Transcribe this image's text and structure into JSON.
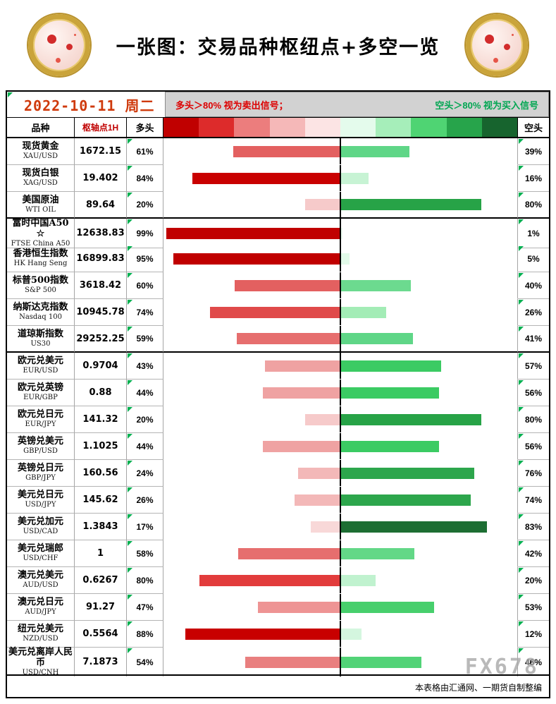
{
  "page": {
    "title": "一张图：交易品种枢纽点+多空一览",
    "date": "2022-10-11 周二",
    "legend": {
      "long_rule": "多头＞80% 视为卖出信号；",
      "short_rule": "空头＞80% 视为买入信号"
    },
    "footer_note": "本表格由汇通网、一期货自制整编",
    "watermark": "FX678"
  },
  "colors": {
    "date_text": "#cf3a0c",
    "legend_long_text": "#dd0000",
    "legend_short_text": "#00a651",
    "pivot_header_text": "#c00000",
    "comment_triangle": "#00b050",
    "legend_background": "#d2d2d2"
  },
  "table": {
    "headers": {
      "instrument": "品种",
      "pivot": "枢轴点1H",
      "long": "多头",
      "short": "空头"
    },
    "color_scale": [
      "#c00000",
      "#dd2b2b",
      "#ec7d7d",
      "#f5b8b8",
      "#fce4e4",
      "#e4fbec",
      "#a6eeba",
      "#4fd473",
      "#27a44b",
      "#17642e"
    ],
    "rows": [
      {
        "name_cn": "现货黄金",
        "ticker": "XAU/USD",
        "pivot": "1672.15",
        "long_pct": 61,
        "short_pct": 39,
        "long_color": "#e36060",
        "short_color": "#5fd687",
        "group": 1
      },
      {
        "name_cn": "现货白银",
        "ticker": "XAG/USD",
        "pivot": "19.402",
        "long_pct": 84,
        "short_pct": 16,
        "long_color": "#c90000",
        "short_color": "#c7f3d4",
        "group": 1
      },
      {
        "name_cn": "美国原油",
        "ticker": "WTI OIL",
        "pivot": "89.64",
        "long_pct": 20,
        "short_pct": 80,
        "long_color": "#f6caca",
        "short_color": "#27a347",
        "group": 1
      },
      {
        "name_cn": "富时中国A50 ☆",
        "ticker": "FTSE China A50",
        "pivot": "12638.83",
        "long_pct": 99,
        "short_pct": 1,
        "long_color": "#c00000",
        "short_color": "#edfcf1",
        "group": 2
      },
      {
        "name_cn": "香港恒生指数",
        "ticker": "HK Hang Seng",
        "pivot": "16899.83",
        "long_pct": 95,
        "short_pct": 5,
        "long_color": "#c00000",
        "short_color": "#e2fae9",
        "group": 2
      },
      {
        "name_cn": "标普500指数",
        "ticker": "S&P 500",
        "pivot": "3618.42",
        "long_pct": 60,
        "short_pct": 40,
        "long_color": "#e36060",
        "short_color": "#6cda8f",
        "group": 2
      },
      {
        "name_cn": "纳斯达克指数",
        "ticker": "Nasdaq 100",
        "pivot": "10945.78",
        "long_pct": 74,
        "short_pct": 26,
        "long_color": "#e04a4a",
        "short_color": "#a3ecb6",
        "group": 2
      },
      {
        "name_cn": "道琼斯指数",
        "ticker": "US30",
        "pivot": "29252.25",
        "long_pct": 59,
        "short_pct": 41,
        "long_color": "#e66e6e",
        "short_color": "#5fd687",
        "group": 2
      },
      {
        "name_cn": "欧元兑美元",
        "ticker": "EUR/USD",
        "pivot": "0.9704",
        "long_pct": 43,
        "short_pct": 57,
        "long_color": "#efa2a2",
        "short_color": "#3bcb63",
        "group": 3
      },
      {
        "name_cn": "欧元兑英镑",
        "ticker": "EUR/GBP",
        "pivot": "0.88",
        "long_pct": 44,
        "short_pct": 56,
        "long_color": "#efa2a2",
        "short_color": "#3bcb63",
        "group": 3
      },
      {
        "name_cn": "欧元兑日元",
        "ticker": "EUR/JPY",
        "pivot": "141.32",
        "long_pct": 20,
        "short_pct": 80,
        "long_color": "#f6caca",
        "short_color": "#27a347",
        "group": 3
      },
      {
        "name_cn": "英镑兑美元",
        "ticker": "GBP/USD",
        "pivot": "1.1025",
        "long_pct": 44,
        "short_pct": 56,
        "long_color": "#efa2a2",
        "short_color": "#3bcb63",
        "group": 3
      },
      {
        "name_cn": "英镑兑日元",
        "ticker": "GBP/JPY",
        "pivot": "160.56",
        "long_pct": 24,
        "short_pct": 76,
        "long_color": "#f3b8b8",
        "short_color": "#2da64c",
        "group": 3
      },
      {
        "name_cn": "美元兑日元",
        "ticker": "USD/JPY",
        "pivot": "145.62",
        "long_pct": 26,
        "short_pct": 74,
        "long_color": "#f3b8b8",
        "short_color": "#2da64c",
        "group": 3
      },
      {
        "name_cn": "美元兑加元",
        "ticker": "USD/CAD",
        "pivot": "1.3843",
        "long_pct": 17,
        "short_pct": 83,
        "long_color": "#f8d8d8",
        "short_color": "#1d6e33",
        "group": 3
      },
      {
        "name_cn": "美元兑瑞郎",
        "ticker": "USD/CHF",
        "pivot": "1",
        "long_pct": 58,
        "short_pct": 42,
        "long_color": "#e66e6e",
        "short_color": "#63d887",
        "group": 3
      },
      {
        "name_cn": "澳元兑美元",
        "ticker": "AUD/USD",
        "pivot": "0.6267",
        "long_pct": 80,
        "short_pct": 20,
        "long_color": "#e23c3c",
        "short_color": "#c0f2cf",
        "group": 3
      },
      {
        "name_cn": "澳元兑日元",
        "ticker": "AUD/JPY",
        "pivot": "91.27",
        "long_pct": 47,
        "short_pct": 53,
        "long_color": "#ee9494",
        "short_color": "#47cf6c",
        "group": 3
      },
      {
        "name_cn": "纽元兑美元",
        "ticker": "NZD/USD",
        "pivot": "0.5564",
        "long_pct": 88,
        "short_pct": 12,
        "long_color": "#c80000",
        "short_color": "#d4f6df",
        "group": 3
      },
      {
        "name_cn": "美元兑离岸人民币",
        "ticker": "USD/CNH",
        "pivot": "7.1873",
        "long_pct": 54,
        "short_pct": 46,
        "long_color": "#e97f7f",
        "short_color": "#52d377",
        "group": 3
      }
    ]
  },
  "chart_data": {
    "type": "bar",
    "orientation": "horizontal-diverging",
    "title": "一张图：交易品种枢纽点+多空一览",
    "date": "2022-10-11 周二",
    "categories": [
      "XAU/USD",
      "XAG/USD",
      "WTI OIL",
      "FTSE China A50",
      "HK Hang Seng",
      "S&P 500",
      "Nasdaq 100",
      "US30",
      "EUR/USD",
      "EUR/GBP",
      "EUR/JPY",
      "GBP/USD",
      "GBP/JPY",
      "USD/JPY",
      "USD/CAD",
      "USD/CHF",
      "AUD/USD",
      "AUD/JPY",
      "NZD/USD",
      "USD/CNH"
    ],
    "pivot_values": [
      1672.15,
      19.402,
      89.64,
      12638.83,
      16899.83,
      3618.42,
      10945.78,
      29252.25,
      0.9704,
      0.88,
      141.32,
      1.1025,
      160.56,
      145.62,
      1.3843,
      1,
      0.6267,
      91.27,
      0.5564,
      7.1873
    ],
    "series": [
      {
        "name": "多头",
        "direction": "left",
        "color_family": "red",
        "values": [
          61,
          84,
          20,
          99,
          95,
          60,
          74,
          59,
          43,
          44,
          20,
          44,
          24,
          26,
          17,
          58,
          80,
          47,
          88,
          54
        ]
      },
      {
        "name": "空头",
        "direction": "right",
        "color_family": "green",
        "values": [
          39,
          16,
          80,
          1,
          5,
          40,
          26,
          41,
          57,
          56,
          80,
          56,
          76,
          74,
          83,
          42,
          20,
          53,
          12,
          46
        ]
      }
    ],
    "xlim": [
      -100,
      100
    ],
    "grid": false,
    "legend_notes": [
      "多头＞80% 视为卖出信号；",
      "空头＞80% 视为买入信号"
    ]
  }
}
